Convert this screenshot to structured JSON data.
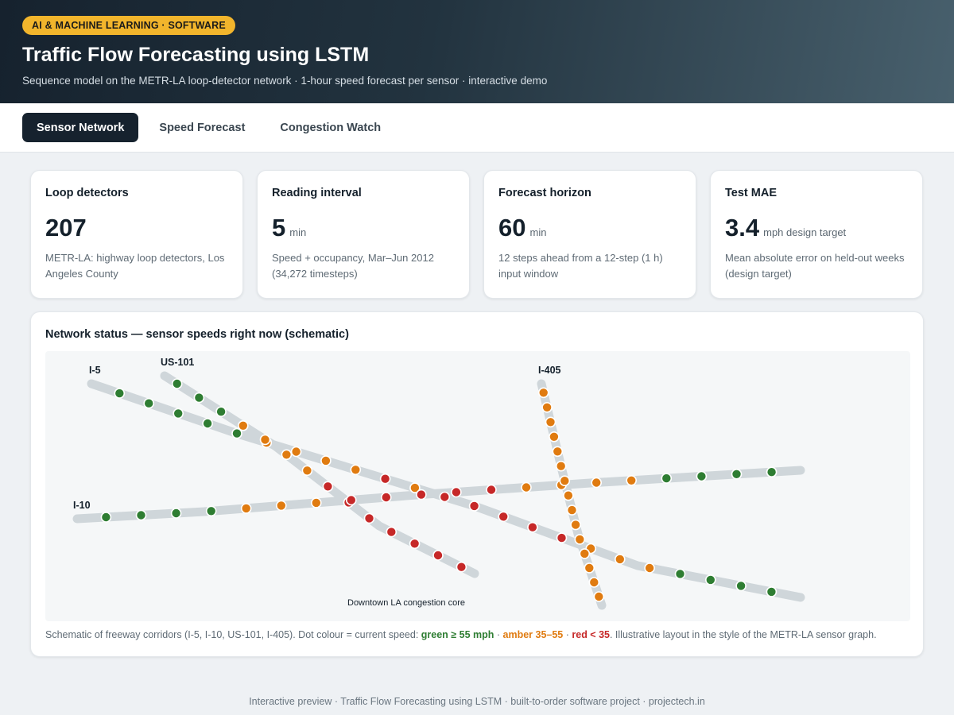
{
  "header": {
    "badge": "AI & MACHINE LEARNING · SOFTWARE",
    "title": "Traffic Flow Forecasting using LSTM",
    "subtitle": "Sequence model on the METR-LA loop-detector network · 1-hour speed forecast per sensor · interactive demo"
  },
  "tabs": [
    {
      "label": "Sensor Network",
      "active": true
    },
    {
      "label": "Speed Forecast",
      "active": false
    },
    {
      "label": "Congestion Watch",
      "active": false
    }
  ],
  "cards": [
    {
      "label": "Loop detectors",
      "value": "207",
      "unit": "",
      "desc": "METR-LA: highway loop detectors, Los Angeles County"
    },
    {
      "label": "Reading interval",
      "value": "5",
      "unit": "min",
      "desc": "Speed + occupancy, Mar–Jun 2012 (34,272 timesteps)"
    },
    {
      "label": "Forecast horizon",
      "value": "60",
      "unit": "min",
      "desc": "12 steps ahead from a 12-step (1 h) input window"
    },
    {
      "label": "Test MAE",
      "value": "3.4",
      "unit": "mph design target",
      "desc": "Mean absolute error on held-out weeks (design target)"
    }
  ],
  "panel": {
    "title": "Network status — sensor speeds right now (schematic)",
    "core_label": "Downtown LA congestion core",
    "caption": {
      "prefix": "Schematic of freeway corridors (I-5, I-10, US-101, I-405). Dot colour = current speed: ",
      "green": "green ≥ 55 mph",
      "sep1": " · ",
      "amber": "amber 35–55",
      "sep2": " · ",
      "red": "red < 35",
      "suffix": ". Illustrative layout in the style of the METR-LA sensor graph."
    }
  },
  "colors": {
    "green": "#2e7d32",
    "amber": "#e07b10",
    "red": "#c62828",
    "road": "#cfd6da"
  },
  "corridors": [
    {
      "name": "I-5",
      "sensors": [
        "green",
        "green",
        "green",
        "green",
        "green",
        "amber",
        "amber",
        "amber",
        "amber",
        "red",
        "amber",
        "red",
        "red",
        "red",
        "red",
        "red",
        "amber",
        "amber",
        "amber",
        "green",
        "green",
        "green",
        "green"
      ]
    },
    {
      "name": "US-101",
      "sensors": [
        "green",
        "green",
        "green",
        "amber",
        "amber",
        "amber",
        "amber",
        "red",
        "red",
        "red",
        "red",
        "red",
        "red",
        "red"
      ]
    },
    {
      "name": "I-10",
      "sensors": [
        "green",
        "green",
        "green",
        "green",
        "amber",
        "amber",
        "amber",
        "red",
        "red",
        "red",
        "red",
        "red",
        "amber",
        "amber",
        "amber",
        "amber",
        "green",
        "green",
        "green",
        "green"
      ]
    },
    {
      "name": "I-405",
      "sensors": [
        "amber",
        "amber",
        "amber",
        "amber",
        "amber",
        "amber",
        "amber",
        "amber",
        "amber",
        "amber",
        "amber",
        "amber",
        "amber",
        "amber",
        "amber"
      ]
    }
  ],
  "footer": "Interactive preview · Traffic Flow Forecasting using LSTM · built-to-order software project · projectech.in"
}
